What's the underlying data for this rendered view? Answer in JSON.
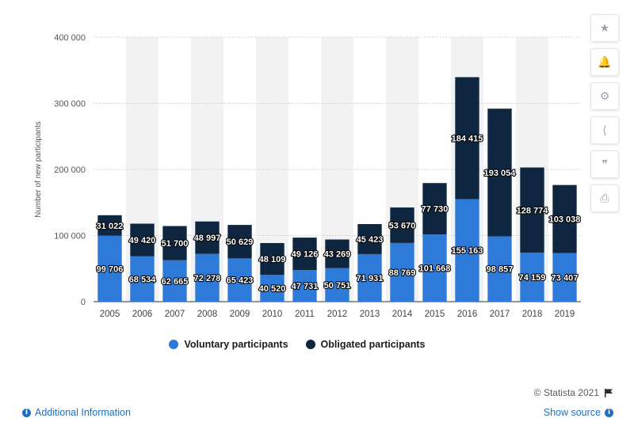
{
  "toolbar": {
    "icons": [
      "star-icon",
      "bell-icon",
      "gear-icon",
      "share-icon",
      "quote-icon",
      "print-icon"
    ],
    "glyphs": [
      "★",
      "🔔",
      "⚙",
      "⟨",
      "❞",
      "⎙"
    ]
  },
  "legend": {
    "voluntary_label": "Voluntary participants",
    "obligated_label": "Obligated participants"
  },
  "footer": {
    "credit": "© Statista 2021",
    "additional_info": "Additional Information",
    "show_source": "Show source"
  },
  "colors": {
    "voluntary": "#2e7ad8",
    "obligated": "#0f2640",
    "band": "#f2f2f2",
    "grid": "#c9c9c9"
  },
  "chart_data": {
    "type": "bar",
    "stacked": true,
    "ylabel": "Number of new participants",
    "ylim": [
      0,
      400000
    ],
    "yticks": [
      0,
      100000,
      200000,
      300000,
      400000
    ],
    "ytick_labels": [
      "0",
      "100 000",
      "200 000",
      "300 000",
      "400 000"
    ],
    "grid": true,
    "legend_position": "bottom",
    "categories": [
      "2005",
      "2006",
      "2007",
      "2008",
      "2009",
      "2010",
      "2011",
      "2012",
      "2013",
      "2014",
      "2015",
      "2016",
      "2017",
      "2018",
      "2019"
    ],
    "series": [
      {
        "name": "Voluntary participants",
        "values": [
          99706,
          68534,
          62665,
          72278,
          65423,
          40520,
          47731,
          50751,
          71931,
          88769,
          101668,
          155163,
          98857,
          74159,
          73407
        ],
        "labels": [
          "99 706",
          "68 534",
          "62 665",
          "72 278",
          "65 423",
          "40 520",
          "47 731",
          "50 751",
          "71 931",
          "88 769",
          "101 668",
          "155 163",
          "98 857",
          "74 159",
          "73 407"
        ]
      },
      {
        "name": "Obligated participants",
        "values": [
          31022,
          49420,
          51700,
          48997,
          50629,
          48109,
          49126,
          43269,
          45423,
          53670,
          77730,
          184415,
          193054,
          128774,
          103038
        ],
        "labels": [
          "31 022",
          "49 420",
          "51 700",
          "48 997",
          "50 629",
          "48 109",
          "49 126",
          "43 269",
          "45 423",
          "53 670",
          "77 730",
          "184 415",
          "193 054",
          "128 774",
          "103 038"
        ]
      }
    ]
  }
}
